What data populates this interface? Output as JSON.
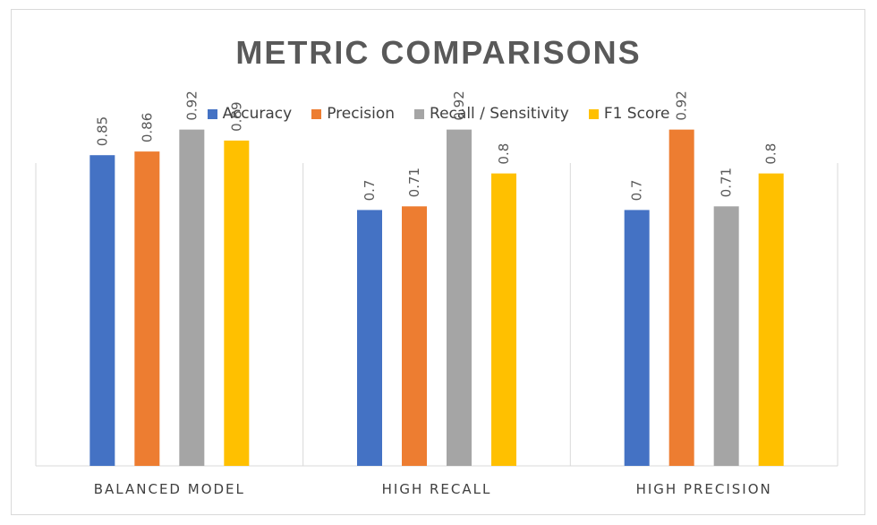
{
  "chart_data": {
    "type": "bar",
    "title": "METRIC COMPARISONS",
    "categories": [
      "BALANCED MODEL",
      "HIGH RECALL",
      "HIGH PRECISION"
    ],
    "series": [
      {
        "name": "Accuracy",
        "color": "#4472c4",
        "values": [
          0.85,
          0.7,
          0.7
        ]
      },
      {
        "name": "Precision",
        "color": "#ed7d31",
        "values": [
          0.86,
          0.71,
          0.92
        ]
      },
      {
        "name": "Recall / Sensitivity",
        "color": "#a5a5a5",
        "values": [
          0.92,
          0.92,
          0.71
        ]
      },
      {
        "name": "F1 Score",
        "color": "#ffc000",
        "values": [
          0.89,
          0.8,
          0.8
        ]
      }
    ],
    "ylim": [
      0,
      1
    ],
    "grid": false,
    "legend_position": "top"
  }
}
